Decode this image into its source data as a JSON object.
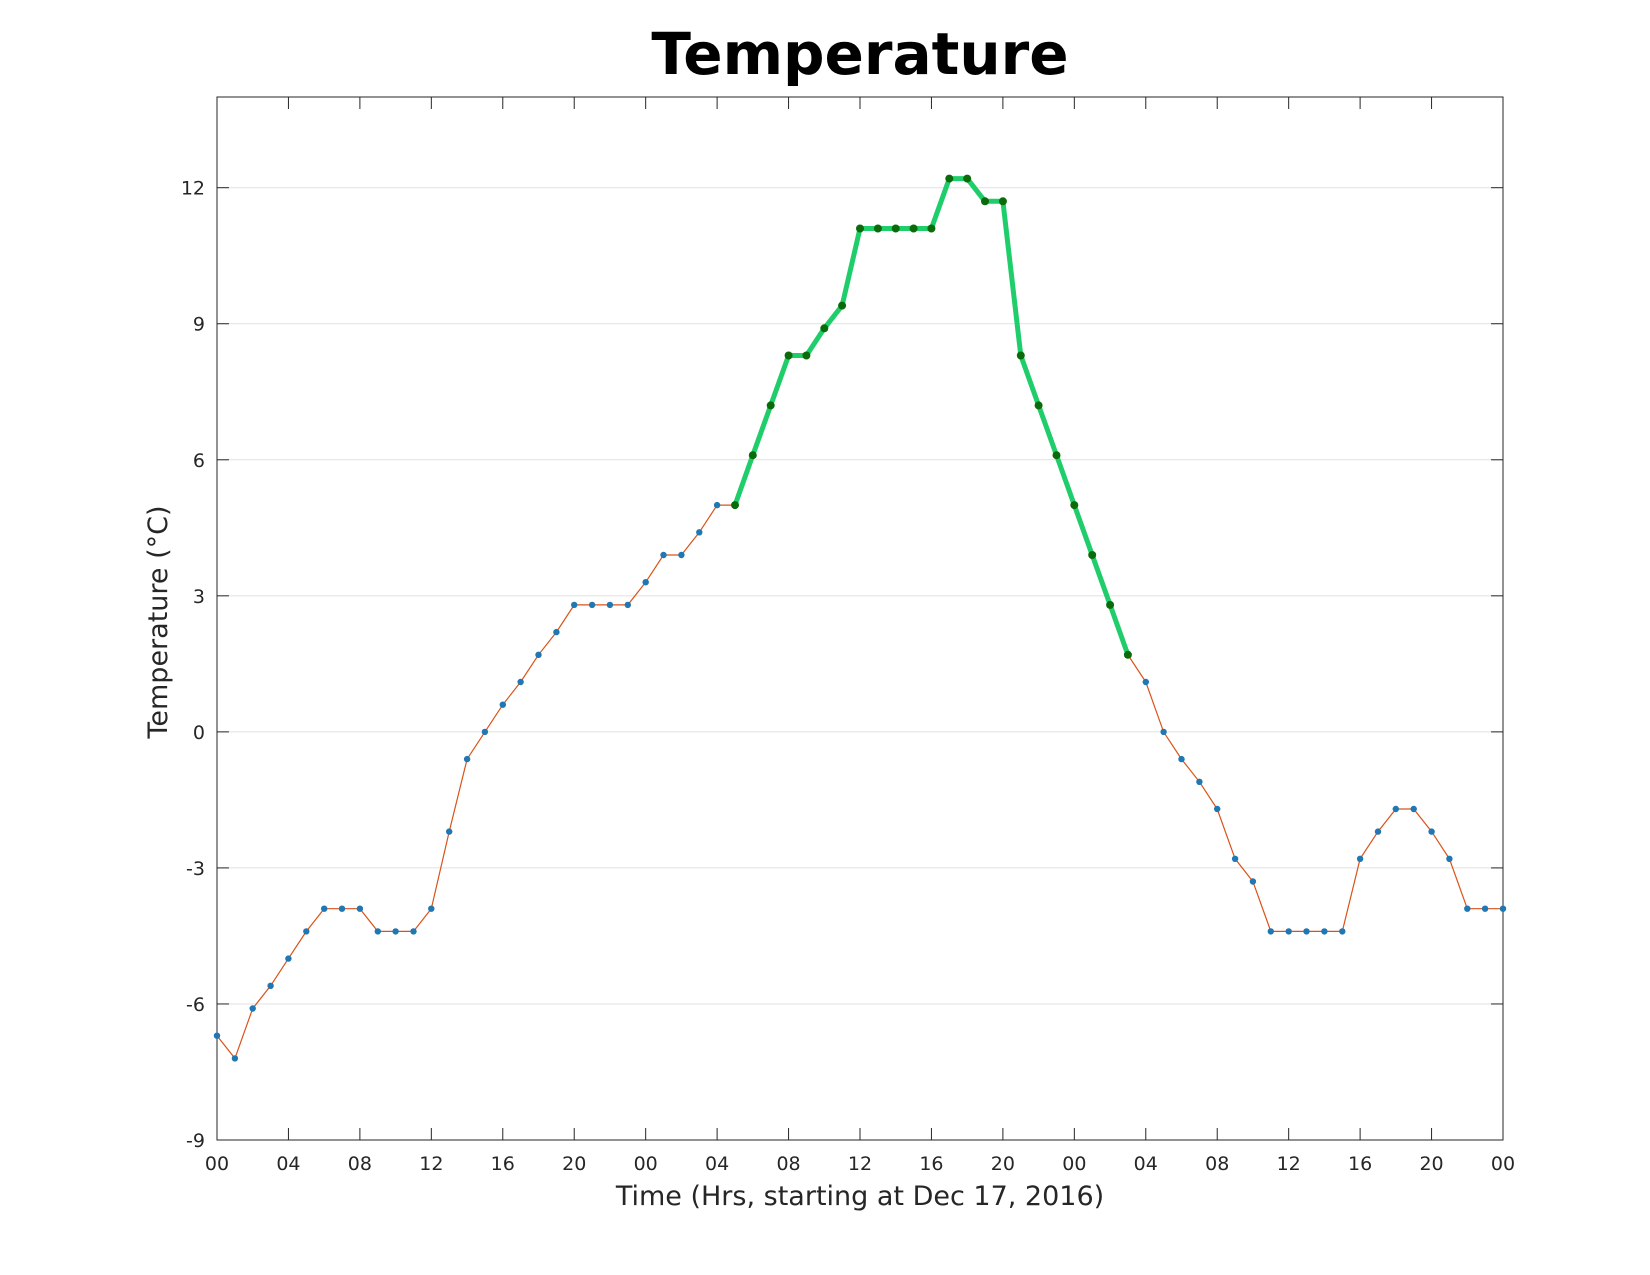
{
  "chart_data": {
    "type": "line",
    "title": "Temperature",
    "xlabel": "Time (Hrs, starting at Dec 17, 2016)",
    "ylabel": "Temperature (°C)",
    "x_unit": "hours",
    "xlim": [
      0,
      72
    ],
    "ylim": [
      -9,
      14
    ],
    "x_ticks": [
      0,
      4,
      8,
      12,
      16,
      20,
      24,
      28,
      32,
      36,
      40,
      44,
      48,
      52,
      56,
      60,
      64,
      68,
      72
    ],
    "x_tick_labels": [
      "00",
      "04",
      "08",
      "12",
      "16",
      "20",
      "00",
      "04",
      "08",
      "12",
      "16",
      "20",
      "00",
      "04",
      "08",
      "12",
      "16",
      "20",
      "00"
    ],
    "y_ticks": [
      -9,
      -6,
      -3,
      0,
      3,
      6,
      9,
      12
    ],
    "y_tick_labels": [
      "-9",
      "-6",
      "-3",
      "0",
      "3",
      "6",
      "9",
      "12"
    ],
    "grid": "horizontal",
    "highlight_range": [
      29,
      51
    ],
    "colors": {
      "base_line": "#d95319",
      "base_marker": "#1f77b4",
      "highlight_line": "#1fce6b",
      "highlight_marker": "#0a6b0a",
      "axis": "#262626",
      "grid": "#e1e1e1"
    },
    "x": [
      0,
      1,
      2,
      3,
      4,
      5,
      6,
      7,
      8,
      9,
      10,
      11,
      12,
      13,
      14,
      15,
      16,
      17,
      18,
      19,
      20,
      21,
      22,
      23,
      24,
      25,
      26,
      27,
      28,
      29,
      30,
      31,
      32,
      33,
      34,
      35,
      36,
      37,
      38,
      39,
      40,
      41,
      42,
      43,
      44,
      45,
      46,
      47,
      48,
      49,
      50,
      51,
      52,
      53,
      54,
      55,
      56,
      57,
      58,
      59,
      60,
      61,
      62,
      63,
      64,
      65,
      66,
      67,
      68,
      69,
      70,
      71,
      72
    ],
    "y": [
      -6.7,
      -7.2,
      -6.1,
      -5.6,
      -5.0,
      -4.4,
      -3.9,
      -3.9,
      -3.9,
      -4.4,
      -4.4,
      -4.4,
      -3.9,
      -2.2,
      -0.6,
      0.0,
      0.6,
      1.1,
      1.7,
      2.2,
      2.8,
      2.8,
      2.8,
      2.8,
      3.3,
      3.9,
      3.9,
      4.4,
      5.0,
      5.0,
      6.1,
      7.2,
      8.3,
      8.3,
      8.9,
      9.4,
      11.1,
      11.1,
      11.1,
      11.1,
      11.1,
      12.2,
      12.2,
      11.7,
      11.7,
      8.3,
      7.2,
      6.1,
      5.0,
      3.9,
      2.8,
      1.7,
      1.1,
      0.0,
      -0.6,
      -1.1,
      -1.7,
      -2.8,
      -3.3,
      -4.4,
      -4.4,
      -4.4,
      -4.4,
      -4.4,
      -2.8,
      -2.2,
      -1.7,
      -1.7,
      -2.2,
      -2.8,
      -3.9,
      -3.9,
      -3.9
    ]
  }
}
